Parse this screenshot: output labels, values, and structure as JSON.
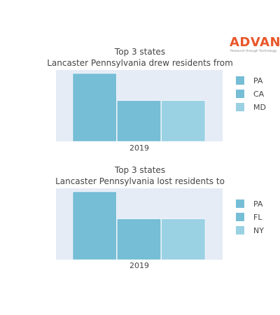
{
  "logo": {
    "text": "ADVAN",
    "tagline": "Research through Technology",
    "color": "#e8572a"
  },
  "style": {
    "plot_bg": "#e5ecf6",
    "text_color": "#444444"
  },
  "chart_data": [
    {
      "type": "bar",
      "title": "Top 3 states",
      "subtitle": "Lancaster Pennsylvania drew residents from",
      "categories": [
        "2019"
      ],
      "series": [
        {
          "name": "PA",
          "values": [
            100
          ],
          "color": "#76bdd6"
        },
        {
          "name": "CA",
          "values": [
            60
          ],
          "color": "#76bdd6"
        },
        {
          "name": "MD",
          "values": [
            60
          ],
          "color": "#9ad1e3"
        }
      ],
      "xlabel": "",
      "ylabel": "",
      "grid": false,
      "legend": "right"
    },
    {
      "type": "bar",
      "title": "Top 3 states",
      "subtitle": "Lancaster Pennsylvania lost residents to",
      "categories": [
        "2019"
      ],
      "series": [
        {
          "name": "PA",
          "values": [
            100
          ],
          "color": "#76bdd6"
        },
        {
          "name": "FL",
          "values": [
            60
          ],
          "color": "#76bdd6"
        },
        {
          "name": "NY",
          "values": [
            60
          ],
          "color": "#9ad1e3"
        }
      ],
      "xlabel": "",
      "ylabel": "",
      "grid": false,
      "legend": "right"
    }
  ]
}
